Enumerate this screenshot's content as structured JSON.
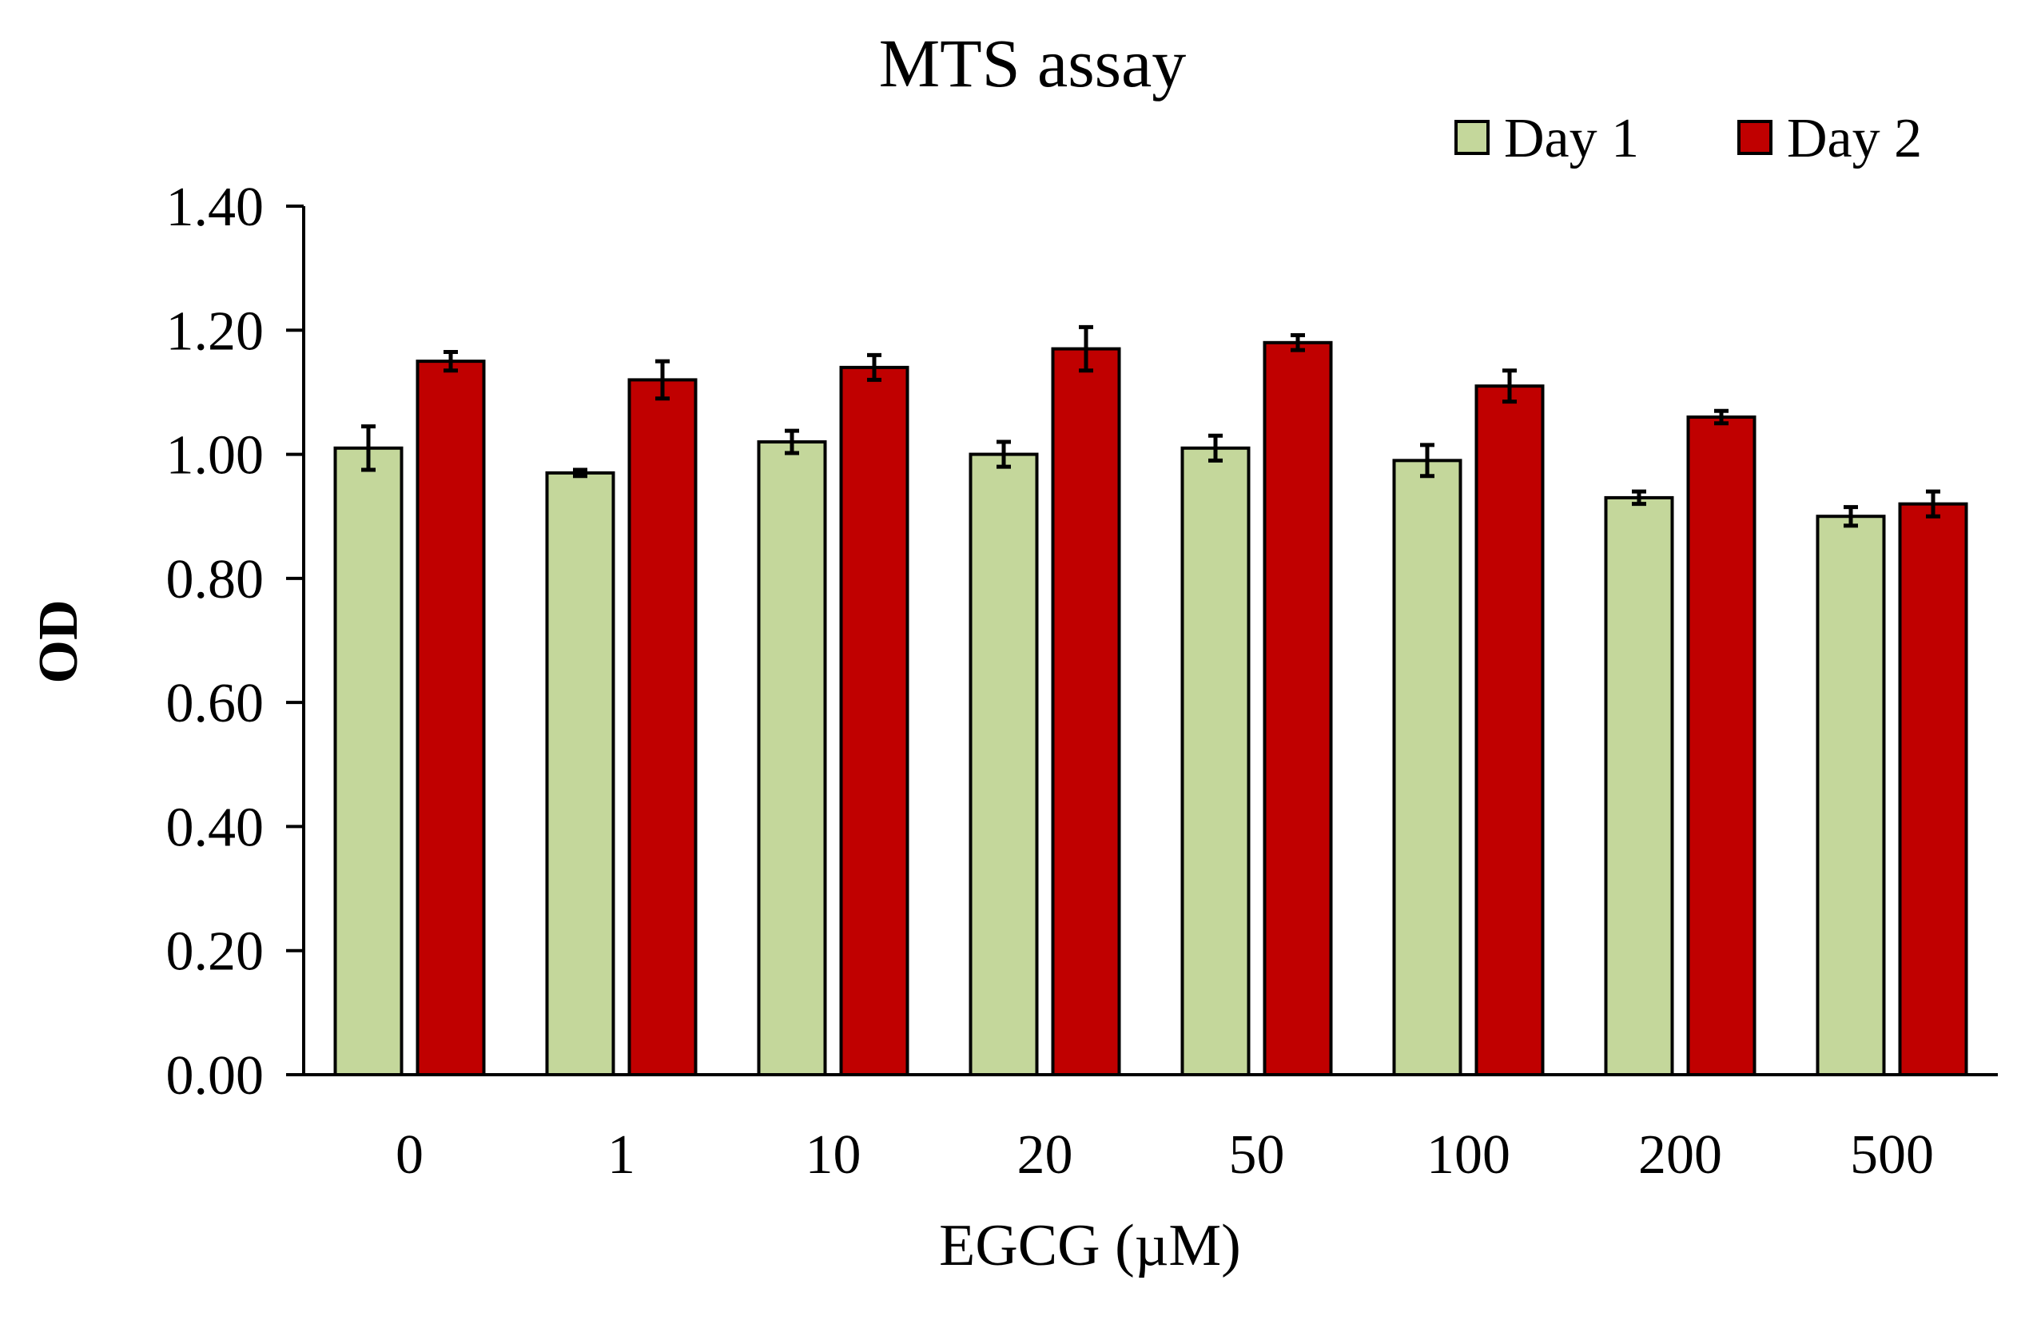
{
  "chart_data": {
    "type": "bar",
    "title": "MTS assay",
    "xlabel": "EGCG (µM)",
    "ylabel": "OD",
    "categories": [
      "0",
      "1",
      "10",
      "20",
      "50",
      "100",
      "200",
      "500"
    ],
    "ylim": [
      0,
      1.4
    ],
    "yticks": [
      "0.00",
      "0.20",
      "0.40",
      "0.60",
      "0.80",
      "1.00",
      "1.20",
      "1.40"
    ],
    "grid": false,
    "legend_position": "top-right",
    "series": [
      {
        "name": "Day 1",
        "color": "#c4d79b",
        "values": [
          1.01,
          0.97,
          1.02,
          1.0,
          1.01,
          0.99,
          0.93,
          0.9
        ],
        "errors": [
          0.035,
          0.005,
          0.018,
          0.02,
          0.02,
          0.025,
          0.01,
          0.015
        ]
      },
      {
        "name": "Day 2",
        "color": "#c00000",
        "values": [
          1.15,
          1.12,
          1.14,
          1.17,
          1.18,
          1.11,
          1.06,
          0.92
        ],
        "errors": [
          0.015,
          0.03,
          0.02,
          0.035,
          0.012,
          0.025,
          0.01,
          0.02
        ]
      }
    ]
  }
}
